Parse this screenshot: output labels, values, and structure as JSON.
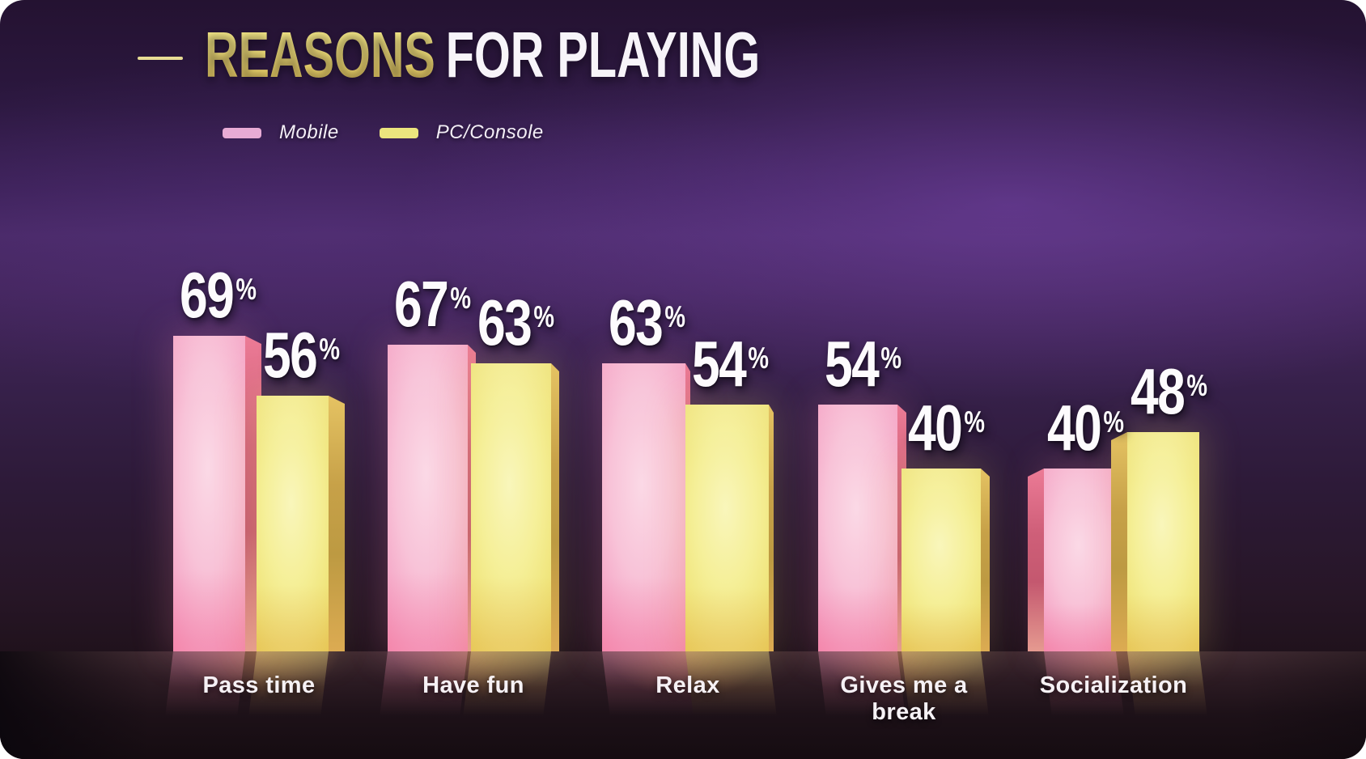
{
  "header": {
    "title_accent": "REASONS",
    "title_rest": "FOR PLAYING"
  },
  "chart_data": {
    "type": "bar",
    "title": "REASONS FOR PLAYING",
    "categories": [
      "Pass time",
      "Have fun",
      "Relax",
      "Gives me a break",
      "Socialization"
    ],
    "series": [
      {
        "name": "Mobile",
        "values": [
          69,
          67,
          63,
          54,
          40
        ],
        "bar_color": "#f5a6c6",
        "legend_color": "#e8abd5"
      },
      {
        "name": "PC/Console",
        "values": [
          56,
          63,
          54,
          40,
          48
        ],
        "bar_color": "#efe377",
        "legend_color": "#ebe57e"
      }
    ],
    "unit": "%",
    "value_labels": "above-bars",
    "legend_position": "top-left",
    "axes_visible": false,
    "grid": false,
    "ylim": [
      0,
      100
    ],
    "background_theme": {
      "background_purple": "#44265e",
      "background_dark": "#241231",
      "floor_glow": "#c48252",
      "title_accent_color": "#f2df74",
      "title_text_color": "#f7f4f9",
      "dash_color": "#e7dc94"
    }
  }
}
